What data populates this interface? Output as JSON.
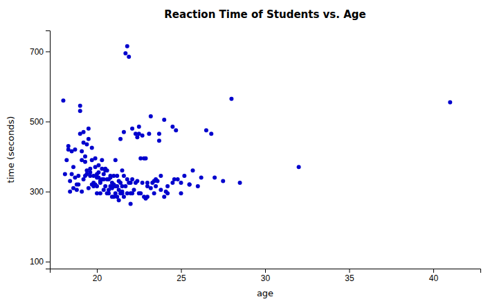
{
  "chart_data": {
    "type": "scatter",
    "title": "Reaction Time of Students vs. Age",
    "xlabel": "age",
    "ylabel": "time (seconds)",
    "xlim": [
      17.2,
      42.8
    ],
    "ylim": [
      80,
      760
    ],
    "xticks": [
      20,
      25,
      30,
      35,
      40
    ],
    "yticks": [
      100,
      300,
      500,
      700
    ],
    "color": "#0000CD",
    "grid": false,
    "x": [
      18.0,
      18.2,
      18.3,
      18.4,
      18.5,
      18.6,
      18.7,
      18.8,
      18.9,
      19.0,
      19.0,
      19.1,
      19.1,
      19.2,
      19.2,
      19.3,
      19.3,
      19.4,
      19.4,
      19.5,
      19.5,
      19.6,
      19.6,
      19.7,
      19.7,
      19.8,
      19.8,
      19.9,
      19.9,
      20.0,
      20.0,
      20.0,
      20.1,
      20.1,
      20.2,
      20.2,
      20.3,
      20.3,
      20.4,
      20.4,
      20.5,
      20.5,
      20.6,
      20.6,
      20.7,
      20.7,
      20.8,
      20.8,
      20.9,
      20.9,
      21.0,
      21.0,
      21.0,
      21.1,
      21.1,
      21.2,
      21.2,
      21.3,
      21.3,
      21.4,
      21.4,
      21.5,
      21.5,
      21.6,
      21.6,
      21.7,
      21.7,
      21.8,
      21.9,
      22.0,
      22.0,
      22.1,
      22.2,
      22.3,
      22.4,
      22.5,
      22.5,
      22.6,
      22.7,
      22.8,
      22.9,
      23.0,
      23.0,
      23.2,
      23.3,
      23.5,
      23.5,
      23.7,
      23.8,
      24.0,
      24.0,
      24.2,
      24.5,
      24.5,
      24.7,
      24.8,
      25.0,
      25.0,
      25.2,
      25.5,
      25.5,
      25.7,
      26.0,
      26.2,
      26.5,
      26.8,
      27.0,
      27.5,
      28.0,
      28.5,
      32.0,
      41.0,
      18.1,
      18.5,
      18.8,
      19.0,
      19.3,
      19.6,
      19.9,
      20.2,
      20.5,
      20.8,
      21.1,
      21.4,
      21.6,
      21.9,
      22.1,
      22.4,
      22.7,
      23.1,
      23.4,
      23.7,
      18.3,
      18.6,
      18.9,
      19.2,
      19.5,
      19.8,
      20.1,
      20.4,
      20.7,
      21.0,
      21.3,
      21.5,
      21.8,
      22.0,
      22.3,
      22.6,
      22.9,
      23.2,
      23.6,
      24.1,
      18.4,
      18.7,
      19.1,
      19.4,
      19.7,
      20.0,
      20.3,
      20.6,
      20.9,
      21.2,
      21.5,
      21.8,
      22.1,
      22.5,
      22.8,
      23.0,
      23.4,
      23.8,
      24.2,
      24.6
    ],
    "y": [
      560,
      390,
      420,
      300,
      350,
      370,
      420,
      305,
      320,
      530,
      545,
      390,
      415,
      440,
      470,
      385,
      400,
      360,
      435,
      450,
      480,
      345,
      365,
      390,
      425,
      315,
      345,
      370,
      395,
      295,
      315,
      340,
      355,
      375,
      295,
      325,
      365,
      390,
      305,
      335,
      315,
      365,
      335,
      360,
      305,
      335,
      315,
      345,
      285,
      325,
      285,
      315,
      345,
      295,
      315,
      285,
      315,
      275,
      305,
      295,
      325,
      295,
      315,
      345,
      285,
      315,
      695,
      715,
      685,
      265,
      295,
      335,
      305,
      325,
      455,
      465,
      485,
      295,
      325,
      395,
      395,
      285,
      315,
      515,
      325,
      315,
      335,
      465,
      305,
      285,
      505,
      295,
      325,
      485,
      475,
      335,
      295,
      325,
      345,
      320,
      320,
      360,
      315,
      340,
      475,
      465,
      340,
      330,
      565,
      325,
      370,
      555,
      350,
      415,
      320,
      465,
      345,
      355,
      320,
      330,
      360,
      340,
      390,
      450,
      470,
      325,
      480,
      330,
      460,
      465,
      330,
      445,
      430,
      310,
      345,
      335,
      310,
      325,
      340,
      350,
      295,
      320,
      330,
      360,
      335,
      325,
      465,
      395,
      280,
      310,
      330,
      300,
      330,
      340,
      300,
      350,
      320,
      350,
      335,
      295,
      310,
      345,
      300,
      295,
      295,
      295,
      285,
      325,
      295,
      345,
      315,
      335
    ]
  }
}
